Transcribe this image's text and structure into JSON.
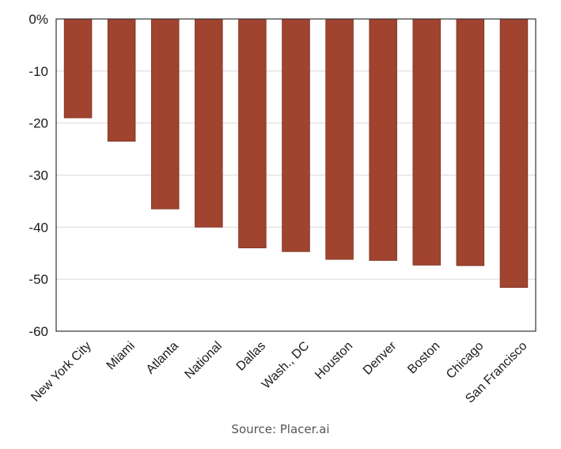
{
  "source_text": "Source: Placer.ai",
  "colors": {
    "bar": "#a0432f",
    "bar_edge": "#7e3121",
    "grid": "#d9d9d9",
    "frame": "#333333"
  },
  "chart_data": {
    "type": "bar",
    "categories": [
      "New York City",
      "Miami",
      "Atlanta",
      "National",
      "Dallas",
      "Wash., DC",
      "Houston",
      "Denver",
      "Boston",
      "Chicago",
      "San Francisco"
    ],
    "values": [
      -19,
      -23.5,
      -36.5,
      -40,
      -44,
      -44.7,
      -46.2,
      -46.4,
      -47.3,
      -47.4,
      -51.6
    ],
    "yticks": [
      "0%",
      "-10",
      "-20",
      "-30",
      "-40",
      "-50",
      "-60"
    ],
    "ylim": [
      -60,
      0
    ],
    "grid": true,
    "title": "",
    "xlabel": "",
    "ylabel": ""
  }
}
